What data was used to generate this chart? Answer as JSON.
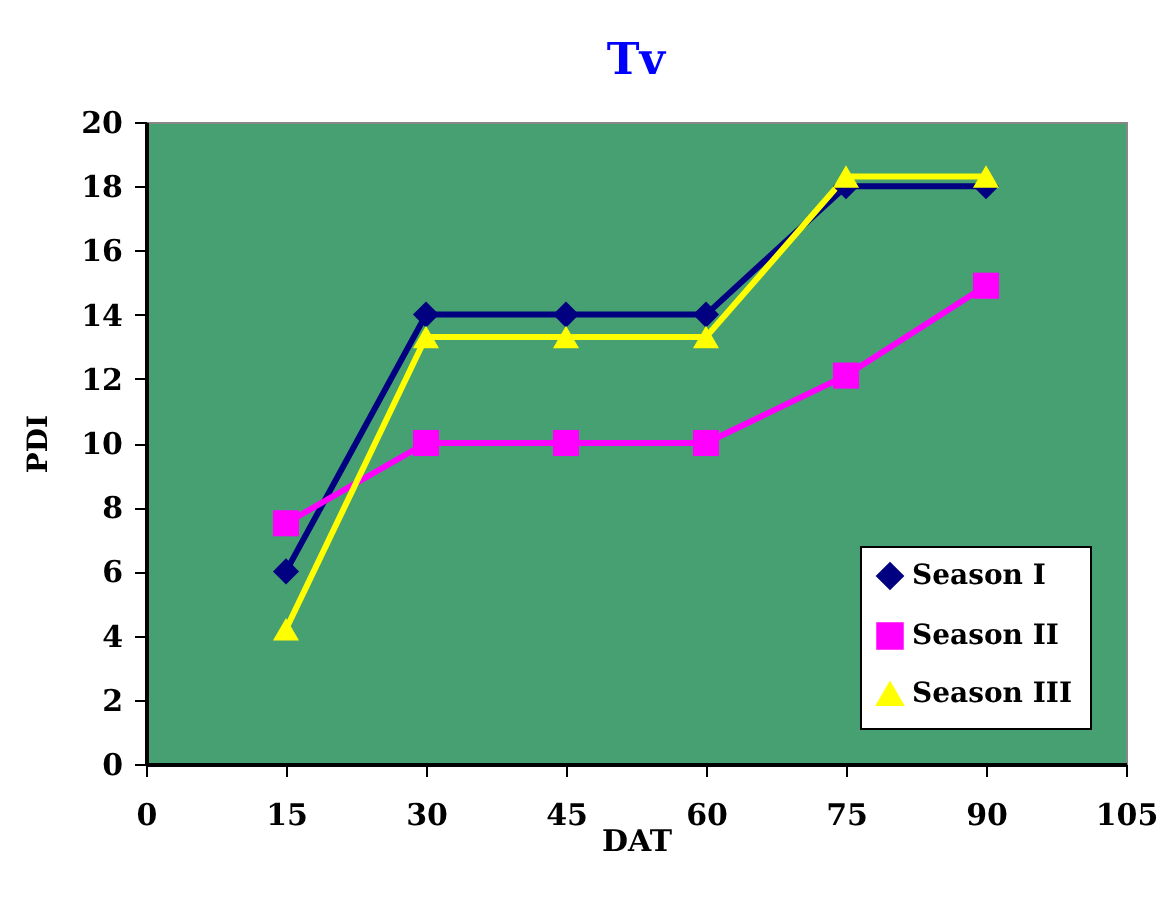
{
  "chart_data": {
    "type": "line",
    "title": "Tv",
    "xlabel": "DAT",
    "ylabel": "PDI",
    "x": [
      15,
      30,
      45,
      60,
      75,
      90
    ],
    "series": [
      {
        "name": "Season I",
        "color": "#000080",
        "marker": "diamond",
        "values": [
          6,
          14,
          14,
          14,
          18,
          18
        ]
      },
      {
        "name": "Season II",
        "color": "#ff00ff",
        "marker": "square",
        "values": [
          7.5,
          10,
          10,
          10,
          12.1,
          14.9
        ]
      },
      {
        "name": "Season III",
        "color": "#ffff00",
        "marker": "triangle",
        "values": [
          4.2,
          13.3,
          13.3,
          13.3,
          18.3,
          18.3
        ]
      }
    ],
    "xlim": [
      0,
      105
    ],
    "xticks": [
      0,
      15,
      30,
      45,
      60,
      75,
      90,
      105
    ],
    "ylim": [
      0,
      20
    ],
    "yticks": [
      0,
      2,
      4,
      6,
      8,
      10,
      12,
      14,
      16,
      18,
      20
    ],
    "grid": false,
    "legend": "bottom right",
    "line_style": "solid"
  }
}
